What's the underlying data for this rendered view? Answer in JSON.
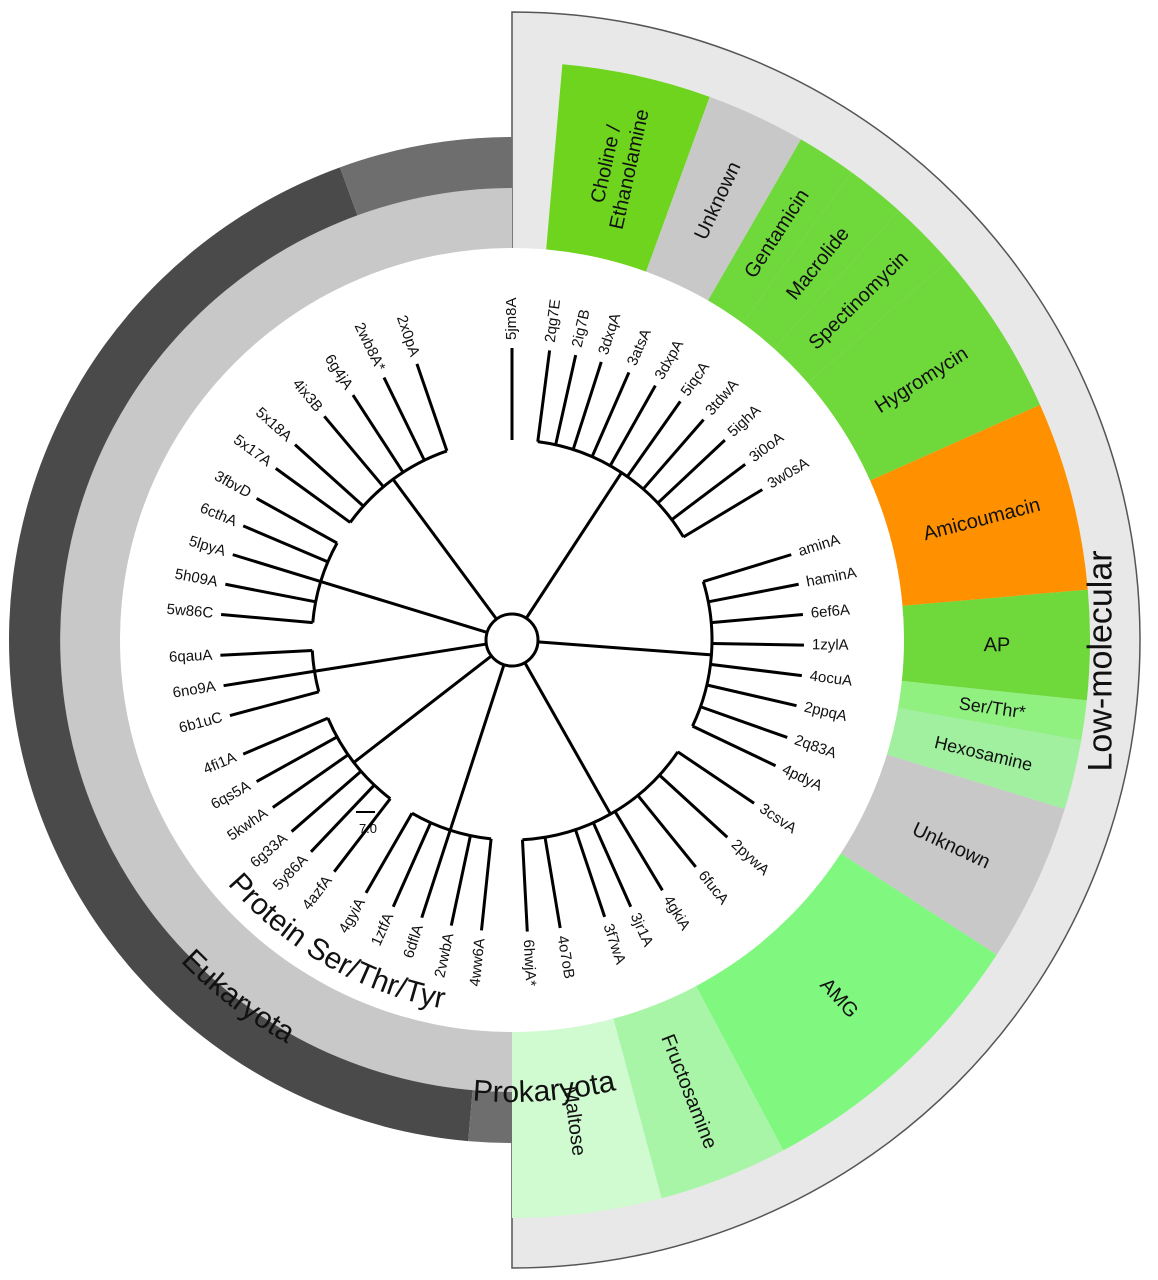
{
  "tree": {
    "leaves": [
      {
        "label": "5jm8A",
        "angle": 0
      },
      {
        "label": "2qg7E",
        "angle": 7.4
      },
      {
        "label": "2ig7B",
        "angle": 12.6
      },
      {
        "label": "3dxqA",
        "angle": 17.8
      },
      {
        "label": "3atsA",
        "angle": 23.6
      },
      {
        "label": "3dxpA",
        "angle": 29.4
      },
      {
        "label": "5iqcA",
        "angle": 35.2
      },
      {
        "label": "3tdwA",
        "angle": 41.0
      },
      {
        "label": "5ighA",
        "angle": 46.8
      },
      {
        "label": "3i0oA",
        "angle": 53.0
      },
      {
        "label": "3w0sA",
        "angle": 59.0
      },
      {
        "label": "aminA",
        "angle": 73.0
      },
      {
        "label": "haminA",
        "angle": 79.0
      },
      {
        "label": "6ef6A",
        "angle": 85.0
      },
      {
        "label": "1zylA",
        "angle": 91.0
      },
      {
        "label": "4ocuA",
        "angle": 97.0
      },
      {
        "label": "2ppqA",
        "angle": 103.0
      },
      {
        "label": "2q83A",
        "angle": 109.5
      },
      {
        "label": "4pdyA",
        "angle": 115.5
      },
      {
        "label": "3csvA",
        "angle": 124.0
      },
      {
        "label": "2pywA",
        "angle": 132.5
      },
      {
        "label": "6fucA",
        "angle": 141.0
      },
      {
        "label": "4gkiA",
        "angle": 149.0
      },
      {
        "label": "3jr1A",
        "angle": 156.0
      },
      {
        "label": "3f7wA",
        "angle": 161.5
      },
      {
        "label": "4o7oB",
        "angle": 170.5
      },
      {
        "label": "6hwjA*",
        "angle": 177.0
      },
      {
        "label": "4ww6A",
        "angle": 186.0
      },
      {
        "label": "2vwbA",
        "angle": 192.0
      },
      {
        "label": "6dflA",
        "angle": 198.0
      },
      {
        "label": "1ztfA",
        "angle": 204.0
      },
      {
        "label": "4gyiA",
        "angle": 210.0
      },
      {
        "label": "4azfA",
        "angle": 217.5
      },
      {
        "label": "5y86A",
        "angle": 223.5
      },
      {
        "label": "6g33A",
        "angle": 229.0
      },
      {
        "label": "5kwhA",
        "angle": 235.0
      },
      {
        "label": "6qs5A",
        "angle": 241.0
      },
      {
        "label": "4fi1A",
        "angle": 247.0
      },
      {
        "label": "6b1uC",
        "angle": 255.0
      },
      {
        "label": "6no9A",
        "angle": 261.0
      },
      {
        "label": "6qauA",
        "angle": 267.0
      },
      {
        "label": "5w86C",
        "angle": 275.0
      },
      {
        "label": "5h09A",
        "angle": 281.0
      },
      {
        "label": "5lpyA",
        "angle": 287.0
      },
      {
        "label": "6cthA",
        "angle": 293.0
      },
      {
        "label": "3fbvD",
        "angle": 299.0
      },
      {
        "label": "5x17A",
        "angle": 306.0
      },
      {
        "label": "5x18A",
        "angle": 312.0
      },
      {
        "label": "4ix3B",
        "angle": 320.0
      },
      {
        "label": "6g4jA",
        "angle": 327.0
      },
      {
        "label": "2wb8A*",
        "angle": 334.0
      },
      {
        "label": "2x0pA",
        "angle": 341.0
      }
    ],
    "scale_label": "7.0"
  },
  "sectors": [
    {
      "label": "Choline /\nEthanolamine",
      "start": 5.0,
      "end": 20.0,
      "color": "#6ed41e",
      "font": 20
    },
    {
      "label": "Unknown",
      "start": 20.0,
      "end": 30.0,
      "color": "#c8c8c8",
      "font": 20
    },
    {
      "label": "Gentamicin",
      "start": 30.0,
      "end": 36.0,
      "color": "#6fd83a",
      "font": 20
    },
    {
      "label": "Macrolide",
      "start": 36.0,
      "end": 42.0,
      "color": "#6fd83a",
      "font": 20
    },
    {
      "label": "Spectinomycin",
      "start": 42.0,
      "end": 49.0,
      "color": "#6fd83a",
      "font": 20
    },
    {
      "label": "Hygromycin",
      "start": 49.0,
      "end": 66.0,
      "color": "#6fd83a",
      "font": 20
    },
    {
      "label": "Amicoumacin",
      "start": 66.0,
      "end": 85.0,
      "color": "#ff9100",
      "font": 20
    },
    {
      "label": "AP",
      "start": 85.0,
      "end": 96.0,
      "color": "#6fd83a",
      "font": 20
    },
    {
      "label": "Ser/Thr*",
      "start": 96.0,
      "end": 100.0,
      "color": "#90f080",
      "font": 18
    },
    {
      "label": "Hexosamine",
      "start": 100.0,
      "end": 107.0,
      "color": "#a0f0a0",
      "font": 18
    },
    {
      "label": "Unknown",
      "start": 107.0,
      "end": 123.0,
      "color": "#c8c8c8",
      "font": 20
    },
    {
      "label": "AMG",
      "start": 123.0,
      "end": 152.0,
      "color": "#80f880",
      "font": 20
    },
    {
      "label": "Fructosamine",
      "start": 152.0,
      "end": 165.0,
      "color": "#a8f5a8",
      "font": 20
    },
    {
      "label": "Maltose",
      "start": 165.0,
      "end": 180.0,
      "color": "#d0fad0",
      "font": 20
    }
  ],
  "groups": {
    "low_molecular": {
      "label": "Low-molecular",
      "color": "#e8e8e8"
    },
    "protein": {
      "label": "Protein Ser/Thr/Tyr",
      "color": "#c8c8c8"
    },
    "eukaryota": {
      "label": "Eukaryota",
      "color": "#4a4a4a"
    },
    "prokaryota": {
      "label": "Prokaryota",
      "color": "#6e6e6e"
    }
  }
}
